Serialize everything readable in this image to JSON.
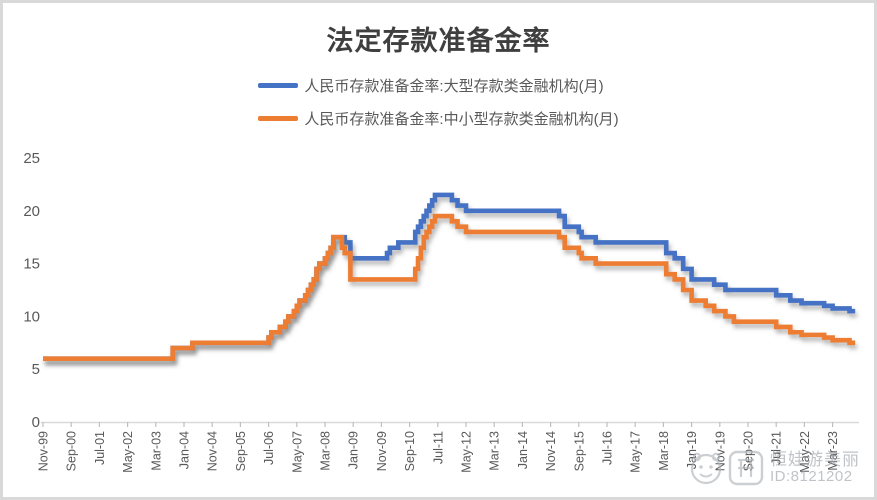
{
  "title": "法定存款准备金率",
  "watermark": {
    "name": "恒娃游美丽",
    "id_text": "ID:8121202",
    "face_icon": "smiley-face-icon",
    "app_icon": "rounded-square-app-logo"
  },
  "axis_style": {
    "axis_line_color": "#d9d9d9",
    "tick_color": "#bfbfbf",
    "label_color": "#595959"
  },
  "chart_data": {
    "type": "line",
    "title": "法定存款准备金率",
    "xlabel": "",
    "ylabel": "",
    "ylim": [
      0,
      25
    ],
    "y_ticks": [
      0,
      5,
      10,
      15,
      20,
      25
    ],
    "grid": false,
    "legend_position": "top",
    "x_start_month": "1999-11",
    "x_end_month": "2023-11",
    "x_tick_interval_months": 10,
    "x_tick_labels": [
      "Nov-99",
      "Sep-00",
      "Jul-01",
      "May-02",
      "Mar-03",
      "Jan-04",
      "Nov-04",
      "Sep-05",
      "Jul-06",
      "May-07",
      "Mar-08",
      "Jan-09",
      "Nov-09",
      "Sep-10",
      "Jul-11",
      "May-12",
      "Mar-13",
      "Jan-14",
      "Nov-14",
      "Sep-15",
      "Jul-16",
      "May-17",
      "Mar-18",
      "Jan-19",
      "Nov-19",
      "Sep-20",
      "Jul-21",
      "May-22",
      "Mar-23"
    ],
    "line_width": 4.6,
    "shadow": true,
    "series": [
      {
        "name": "人民币存款准备金率:大型存款类金融机构(月)",
        "color": "#4472C4",
        "interpolation": "step-after",
        "step_changes": [
          [
            "1999-11",
            6
          ],
          [
            "2003-09",
            7
          ],
          [
            "2004-04",
            7.5
          ],
          [
            "2006-07",
            8
          ],
          [
            "2006-08",
            8.5
          ],
          [
            "2006-11",
            9
          ],
          [
            "2007-01",
            9.5
          ],
          [
            "2007-02",
            10
          ],
          [
            "2007-04",
            10.5
          ],
          [
            "2007-05",
            11
          ],
          [
            "2007-06",
            11.5
          ],
          [
            "2007-08",
            12
          ],
          [
            "2007-09",
            12.5
          ],
          [
            "2007-10",
            13
          ],
          [
            "2007-11",
            13.5
          ],
          [
            "2007-12",
            14.5
          ],
          [
            "2008-01",
            15
          ],
          [
            "2008-03",
            15.5
          ],
          [
            "2008-04",
            16
          ],
          [
            "2008-05",
            16.5
          ],
          [
            "2008-06",
            17.5
          ],
          [
            "2008-10",
            17
          ],
          [
            "2008-12",
            15.5
          ],
          [
            "2010-01",
            16
          ],
          [
            "2010-02",
            16.5
          ],
          [
            "2010-05",
            17
          ],
          [
            "2010-11",
            18
          ],
          [
            "2010-12",
            18.5
          ],
          [
            "2011-01",
            19
          ],
          [
            "2011-02",
            19.5
          ],
          [
            "2011-03",
            20
          ],
          [
            "2011-04",
            20.5
          ],
          [
            "2011-05",
            21
          ],
          [
            "2011-06",
            21.5
          ],
          [
            "2011-12",
            21
          ],
          [
            "2012-02",
            20.5
          ],
          [
            "2012-05",
            20
          ],
          [
            "2015-02",
            19.5
          ],
          [
            "2015-04",
            18.5
          ],
          [
            "2015-09",
            18
          ],
          [
            "2015-10",
            17.5
          ],
          [
            "2016-03",
            17
          ],
          [
            "2018-04",
            16
          ],
          [
            "2018-07",
            15.5
          ],
          [
            "2018-10",
            14.5
          ],
          [
            "2019-01",
            13.5
          ],
          [
            "2019-09",
            13
          ],
          [
            "2020-01",
            12.5
          ],
          [
            "2021-07",
            12
          ],
          [
            "2021-12",
            11.5
          ],
          [
            "2022-04",
            11.25
          ],
          [
            "2022-12",
            11
          ],
          [
            "2023-03",
            10.75
          ],
          [
            "2023-09",
            10.5
          ]
        ]
      },
      {
        "name": "人民币存款准备金率:中小型存款类金融机构(月)",
        "color": "#ED7D31",
        "interpolation": "step-after",
        "step_changes": [
          [
            "1999-11",
            6
          ],
          [
            "2003-09",
            7
          ],
          [
            "2004-04",
            7.5
          ],
          [
            "2006-07",
            8
          ],
          [
            "2006-08",
            8.5
          ],
          [
            "2006-11",
            9
          ],
          [
            "2007-01",
            9.5
          ],
          [
            "2007-02",
            10
          ],
          [
            "2007-04",
            10.5
          ],
          [
            "2007-05",
            11
          ],
          [
            "2007-06",
            11.5
          ],
          [
            "2007-08",
            12
          ],
          [
            "2007-09",
            12.5
          ],
          [
            "2007-10",
            13
          ],
          [
            "2007-11",
            13.5
          ],
          [
            "2007-12",
            14.5
          ],
          [
            "2008-01",
            15
          ],
          [
            "2008-03",
            15.5
          ],
          [
            "2008-04",
            16
          ],
          [
            "2008-05",
            16.5
          ],
          [
            "2008-06",
            17.5
          ],
          [
            "2008-09",
            16.5
          ],
          [
            "2008-10",
            16
          ],
          [
            "2008-12",
            13.5
          ],
          [
            "2010-11",
            14.5
          ],
          [
            "2010-12",
            15.5
          ],
          [
            "2011-01",
            16.5
          ],
          [
            "2011-02",
            17.5
          ],
          [
            "2011-03",
            18
          ],
          [
            "2011-04",
            18.5
          ],
          [
            "2011-05",
            19
          ],
          [
            "2011-06",
            19.5
          ],
          [
            "2011-12",
            19
          ],
          [
            "2012-02",
            18.5
          ],
          [
            "2012-05",
            18
          ],
          [
            "2015-02",
            17.5
          ],
          [
            "2015-04",
            16.5
          ],
          [
            "2015-09",
            16
          ],
          [
            "2015-10",
            15.5
          ],
          [
            "2016-03",
            15
          ],
          [
            "2018-04",
            14
          ],
          [
            "2018-07",
            13.5
          ],
          [
            "2018-10",
            12.5
          ],
          [
            "2019-01",
            11.5
          ],
          [
            "2019-06",
            11
          ],
          [
            "2019-09",
            10.5
          ],
          [
            "2020-01",
            10
          ],
          [
            "2020-04",
            9.5
          ],
          [
            "2021-07",
            9
          ],
          [
            "2021-12",
            8.5
          ],
          [
            "2022-04",
            8.25
          ],
          [
            "2022-12",
            8
          ],
          [
            "2023-03",
            7.75
          ],
          [
            "2023-09",
            7.5
          ]
        ]
      }
    ]
  }
}
